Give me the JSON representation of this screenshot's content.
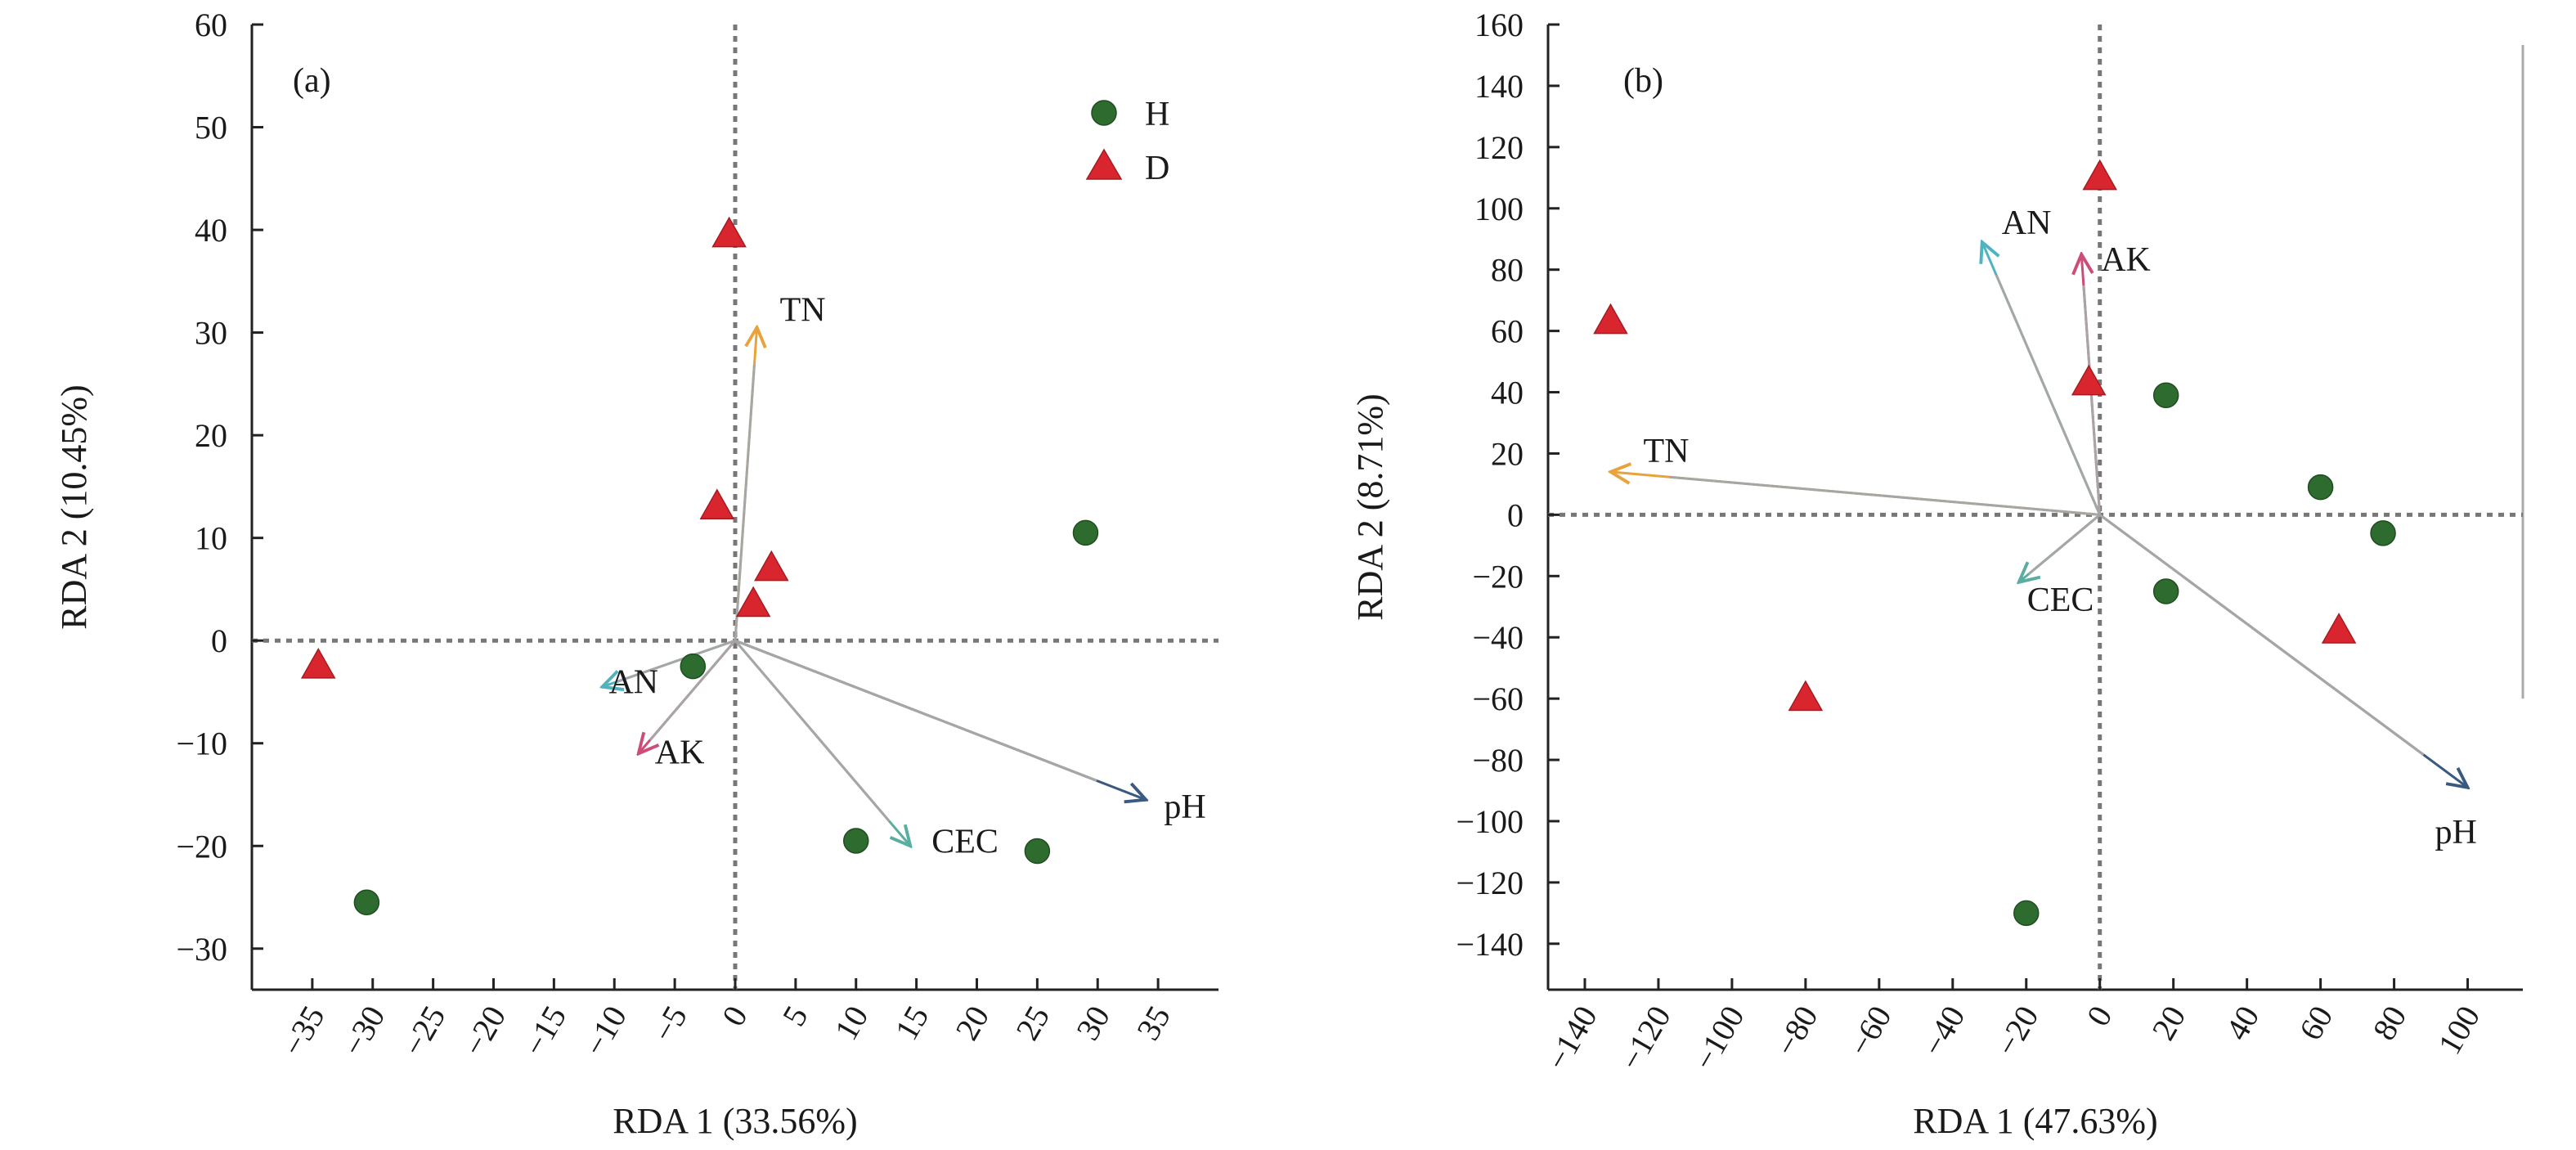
{
  "chart_data": [
    {
      "type": "scatter",
      "panel_label": "(a)",
      "xlabel": "RDA 1 (33.56%)",
      "ylabel": "RDA 2 (10.45%)",
      "xlim": [
        -40,
        40
      ],
      "ylim": [
        -34,
        60
      ],
      "xticks": [
        -35,
        -30,
        -25,
        -20,
        -15,
        -10,
        -5,
        0,
        5,
        10,
        15,
        20,
        25,
        30,
        35
      ],
      "xtick_labels": [
        "−35",
        "−30",
        "−25",
        "−20",
        "−15",
        "−10",
        "−5",
        "0",
        "5",
        "10",
        "15",
        "20",
        "25",
        "30",
        "35"
      ],
      "yticks": [
        -30,
        -20,
        -10,
        0,
        10,
        20,
        30,
        40,
        50,
        60
      ],
      "ytick_labels": [
        "−30",
        "−20",
        "−10",
        "0",
        "10",
        "20",
        "30",
        "40",
        "50",
        "60"
      ],
      "legend": [
        {
          "name": "H",
          "marker": "circle",
          "color": "#2e6b2e"
        },
        {
          "name": "D",
          "marker": "triangle",
          "color": "#d9262e"
        }
      ],
      "series": [
        {
          "name": "H",
          "points": [
            [
              29,
              10.5
            ],
            [
              -3.5,
              -2.5
            ],
            [
              10,
              -19.5
            ],
            [
              25,
              -20.5
            ],
            [
              -30.5,
              -25.5
            ]
          ]
        },
        {
          "name": "D",
          "points": [
            [
              -0.5,
              39.5
            ],
            [
              -1.5,
              13
            ],
            [
              3,
              7
            ],
            [
              1.5,
              3.5
            ],
            [
              -34.5,
              -2.5
            ]
          ]
        }
      ],
      "vectors": [
        {
          "name": "TN",
          "x": 1.8,
          "y": 30.5,
          "color": "#e8a33c"
        },
        {
          "name": "AN",
          "x": -11,
          "y": -4.5,
          "color": "#4fb3c0"
        },
        {
          "name": "AK",
          "x": -8,
          "y": -11,
          "color": "#cc4d7a"
        },
        {
          "name": "CEC",
          "x": 14.5,
          "y": -20,
          "color": "#5aaea0"
        },
        {
          "name": "pH",
          "x": 34,
          "y": -15.5,
          "color": "#3a5a80"
        }
      ]
    },
    {
      "type": "scatter",
      "panel_label": "(b)",
      "xlabel": "RDA 1 (47.63%)",
      "ylabel": "RDA 2 (8.71%)",
      "xlim": [
        -150,
        115
      ],
      "ylim": [
        -155,
        160
      ],
      "xticks": [
        -140,
        -120,
        -100,
        -80,
        -60,
        -40,
        -20,
        0,
        20,
        40,
        60,
        80,
        100
      ],
      "xtick_labels": [
        "−140",
        "−120",
        "−100",
        "−80",
        "−60",
        "−40",
        "−20",
        "0",
        "20",
        "40",
        "60",
        "80",
        "100"
      ],
      "yticks": [
        -140,
        -120,
        -100,
        -80,
        -60,
        -40,
        -20,
        0,
        20,
        40,
        60,
        80,
        100,
        120,
        140,
        160
      ],
      "ytick_labels": [
        "−140",
        "−120",
        "−100",
        "−80",
        "−60",
        "−40",
        "−20",
        "0",
        "20",
        "40",
        "60",
        "80",
        "100",
        "120",
        "140",
        "160"
      ],
      "series": [
        {
          "name": "H",
          "points": [
            [
              18,
              39
            ],
            [
              60,
              9
            ],
            [
              77,
              -6
            ],
            [
              18,
              -25
            ],
            [
              -20,
              -130
            ]
          ]
        },
        {
          "name": "D",
          "points": [
            [
              -133,
              63
            ],
            [
              0,
              110
            ],
            [
              -3,
              43
            ],
            [
              65,
              -38
            ],
            [
              -80,
              -60
            ]
          ]
        }
      ],
      "vectors": [
        {
          "name": "TN",
          "x": -133,
          "y": 14,
          "color": "#e8a33c"
        },
        {
          "name": "AN",
          "x": -32,
          "y": 89,
          "color": "#4fb3c0"
        },
        {
          "name": "AK",
          "x": -5,
          "y": 85,
          "color": "#cc4d7a"
        },
        {
          "name": "CEC",
          "x": -22,
          "y": -22,
          "color": "#5aaea0"
        },
        {
          "name": "pH",
          "x": 100,
          "y": -89,
          "color": "#3a5a80"
        }
      ]
    }
  ]
}
